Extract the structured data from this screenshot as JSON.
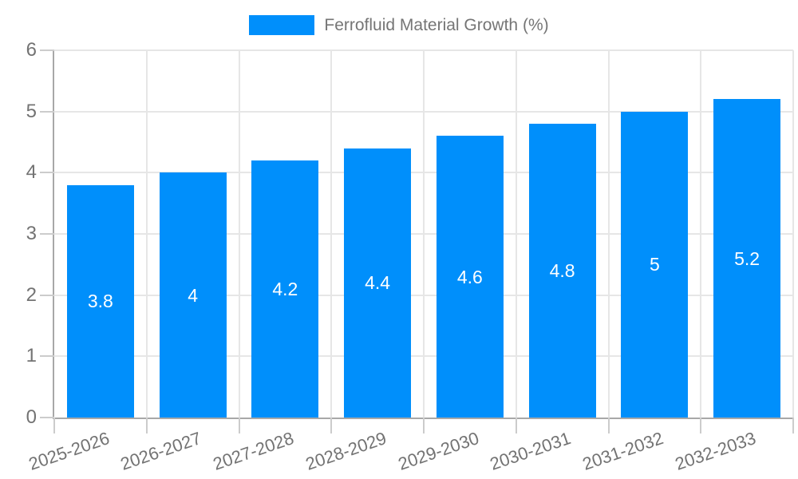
{
  "legend": {
    "label": "Ferrofluid Material Growth (%)"
  },
  "chart_data": {
    "type": "bar",
    "title": "Ferrofluid Material Growth (%)",
    "categories": [
      "2025-2026",
      "2026-2027",
      "2027-2028",
      "2028-2029",
      "2029-2030",
      "2030-2031",
      "2031-2032",
      "2032-2033"
    ],
    "values": [
      3.8,
      4,
      4.2,
      4.4,
      4.6,
      4.8,
      5,
      5.2
    ],
    "value_labels": [
      "3.8",
      "4",
      "4.2",
      "4.4",
      "4.6",
      "4.8",
      "5",
      "5.2"
    ],
    "xlabel": "",
    "ylabel": "",
    "ylim": [
      0,
      6
    ],
    "yticks": [
      0,
      1,
      2,
      3,
      4,
      5,
      6
    ],
    "grid": true,
    "legend_position": "top",
    "colors": {
      "bar": "#008FFB",
      "value_label": "#FFFFFF",
      "axis_label": "#737373",
      "legend_label": "#757575",
      "grid_line": "#E6E6E6",
      "axis_line": "#A8A8A8",
      "tick": "#CCCCCC"
    }
  }
}
